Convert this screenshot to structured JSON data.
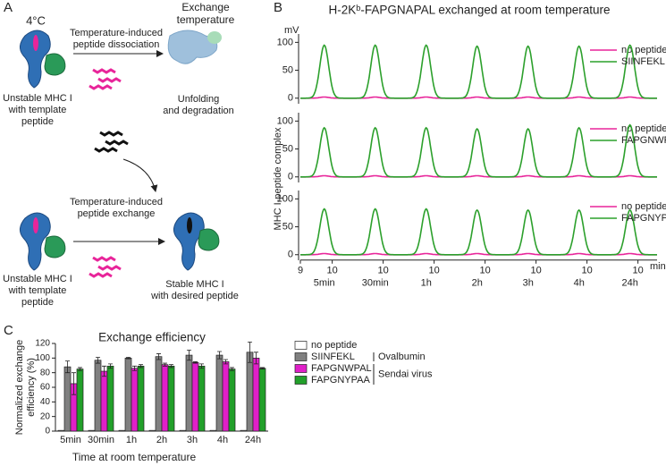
{
  "panel_labels": [
    "A",
    "B",
    "C"
  ],
  "diagram": {
    "condition": "4°C",
    "exchange_temperature": [
      "Exchange",
      "temperature"
    ],
    "dissociation": [
      "Temperature-induced",
      "peptide dissociation"
    ],
    "unstable_top": [
      "Unstable MHC I",
      "with template",
      "peptide"
    ],
    "unfolding": [
      "Unfolding",
      "and degradation"
    ],
    "exchange": [
      "Temperature-induced",
      "peptide exchange"
    ],
    "unstable_bottom": [
      "Unstable MHC I",
      "with template",
      "peptide"
    ],
    "stable": [
      "Stable MHC I",
      "with desired peptide"
    ]
  },
  "chart_data": [
    {
      "type": "chromatogram",
      "title": "H-2Kᵇ-FAPGNAPAL exchanged at room temperature",
      "ylabel": "MHC I-peptide complex",
      "y_unit": "mV",
      "x_unit": "min",
      "categories": [
        "5min",
        "30min",
        "1h",
        "2h",
        "3h",
        "4h",
        "24h"
      ],
      "xlim": [
        9,
        10.6
      ],
      "xticks": [
        9,
        10
      ],
      "ylim": [
        -10,
        115
      ],
      "yticks": [
        0,
        50,
        100
      ],
      "peak_time": 9.75,
      "peak_sigma": 0.14,
      "panels": [
        {
          "series": [
            {
              "name": "no peptide",
              "color": "#e8259a",
              "values": [
                2,
                2,
                2,
                2,
                2,
                2,
                2
              ]
            },
            {
              "name": "SIINFEKL",
              "color": "#2ca02c",
              "values": [
                95,
                95,
                95,
                93,
                93,
                93,
                95
              ]
            }
          ]
        },
        {
          "series": [
            {
              "name": "no peptide",
              "color": "#e8259a",
              "values": [
                2,
                2,
                2,
                2,
                2,
                2,
                2
              ]
            },
            {
              "name": "FAPGNWPAL",
              "color": "#2ca02c",
              "values": [
                88,
                88,
                88,
                86,
                86,
                88,
                93
              ]
            }
          ]
        },
        {
          "series": [
            {
              "name": "no peptide",
              "color": "#e8259a",
              "values": [
                2,
                2,
                2,
                2,
                2,
                2,
                2
              ]
            },
            {
              "name": "FAPGNYPAA",
              "color": "#2ca02c",
              "values": [
                82,
                82,
                82,
                80,
                80,
                80,
                80
              ]
            }
          ]
        }
      ]
    },
    {
      "type": "bar",
      "title": "Exchange efficiency",
      "ylabel": [
        "Normalized exchange",
        "efficiency (%)"
      ],
      "xlabel": "Time at room temperature",
      "categories": [
        "5min",
        "30min",
        "1h",
        "2h",
        "3h",
        "4h",
        "24h"
      ],
      "ylim": [
        0,
        120
      ],
      "yticks": [
        0,
        20,
        40,
        60,
        80,
        100,
        120
      ],
      "series": [
        {
          "name": "no peptide",
          "color": "#ffffff",
          "values": [
            1,
            1,
            1,
            1,
            1,
            1,
            1
          ],
          "errors": [
            0,
            0,
            0,
            0,
            0,
            0,
            0
          ]
        },
        {
          "name": "SIINFEKL",
          "color": "#808080",
          "group": "Ovalbumin",
          "values": [
            88,
            97,
            100,
            102,
            104,
            104,
            108
          ],
          "errors": [
            8,
            4,
            1,
            4,
            7,
            5,
            14
          ]
        },
        {
          "name": "FAPGNWPAL",
          "color": "#e020c8",
          "group": "Sendai virus",
          "values": [
            65,
            82,
            86,
            91,
            94,
            95,
            100
          ],
          "errors": [
            15,
            7,
            3,
            2,
            1,
            3,
            8
          ]
        },
        {
          "name": "FAPGNYPAA",
          "color": "#22a02a",
          "group": "Sendai virus",
          "values": [
            85,
            89,
            89,
            89,
            89,
            85,
            86
          ],
          "errors": [
            2,
            3,
            2,
            2,
            3,
            2,
            1
          ]
        }
      ]
    }
  ]
}
